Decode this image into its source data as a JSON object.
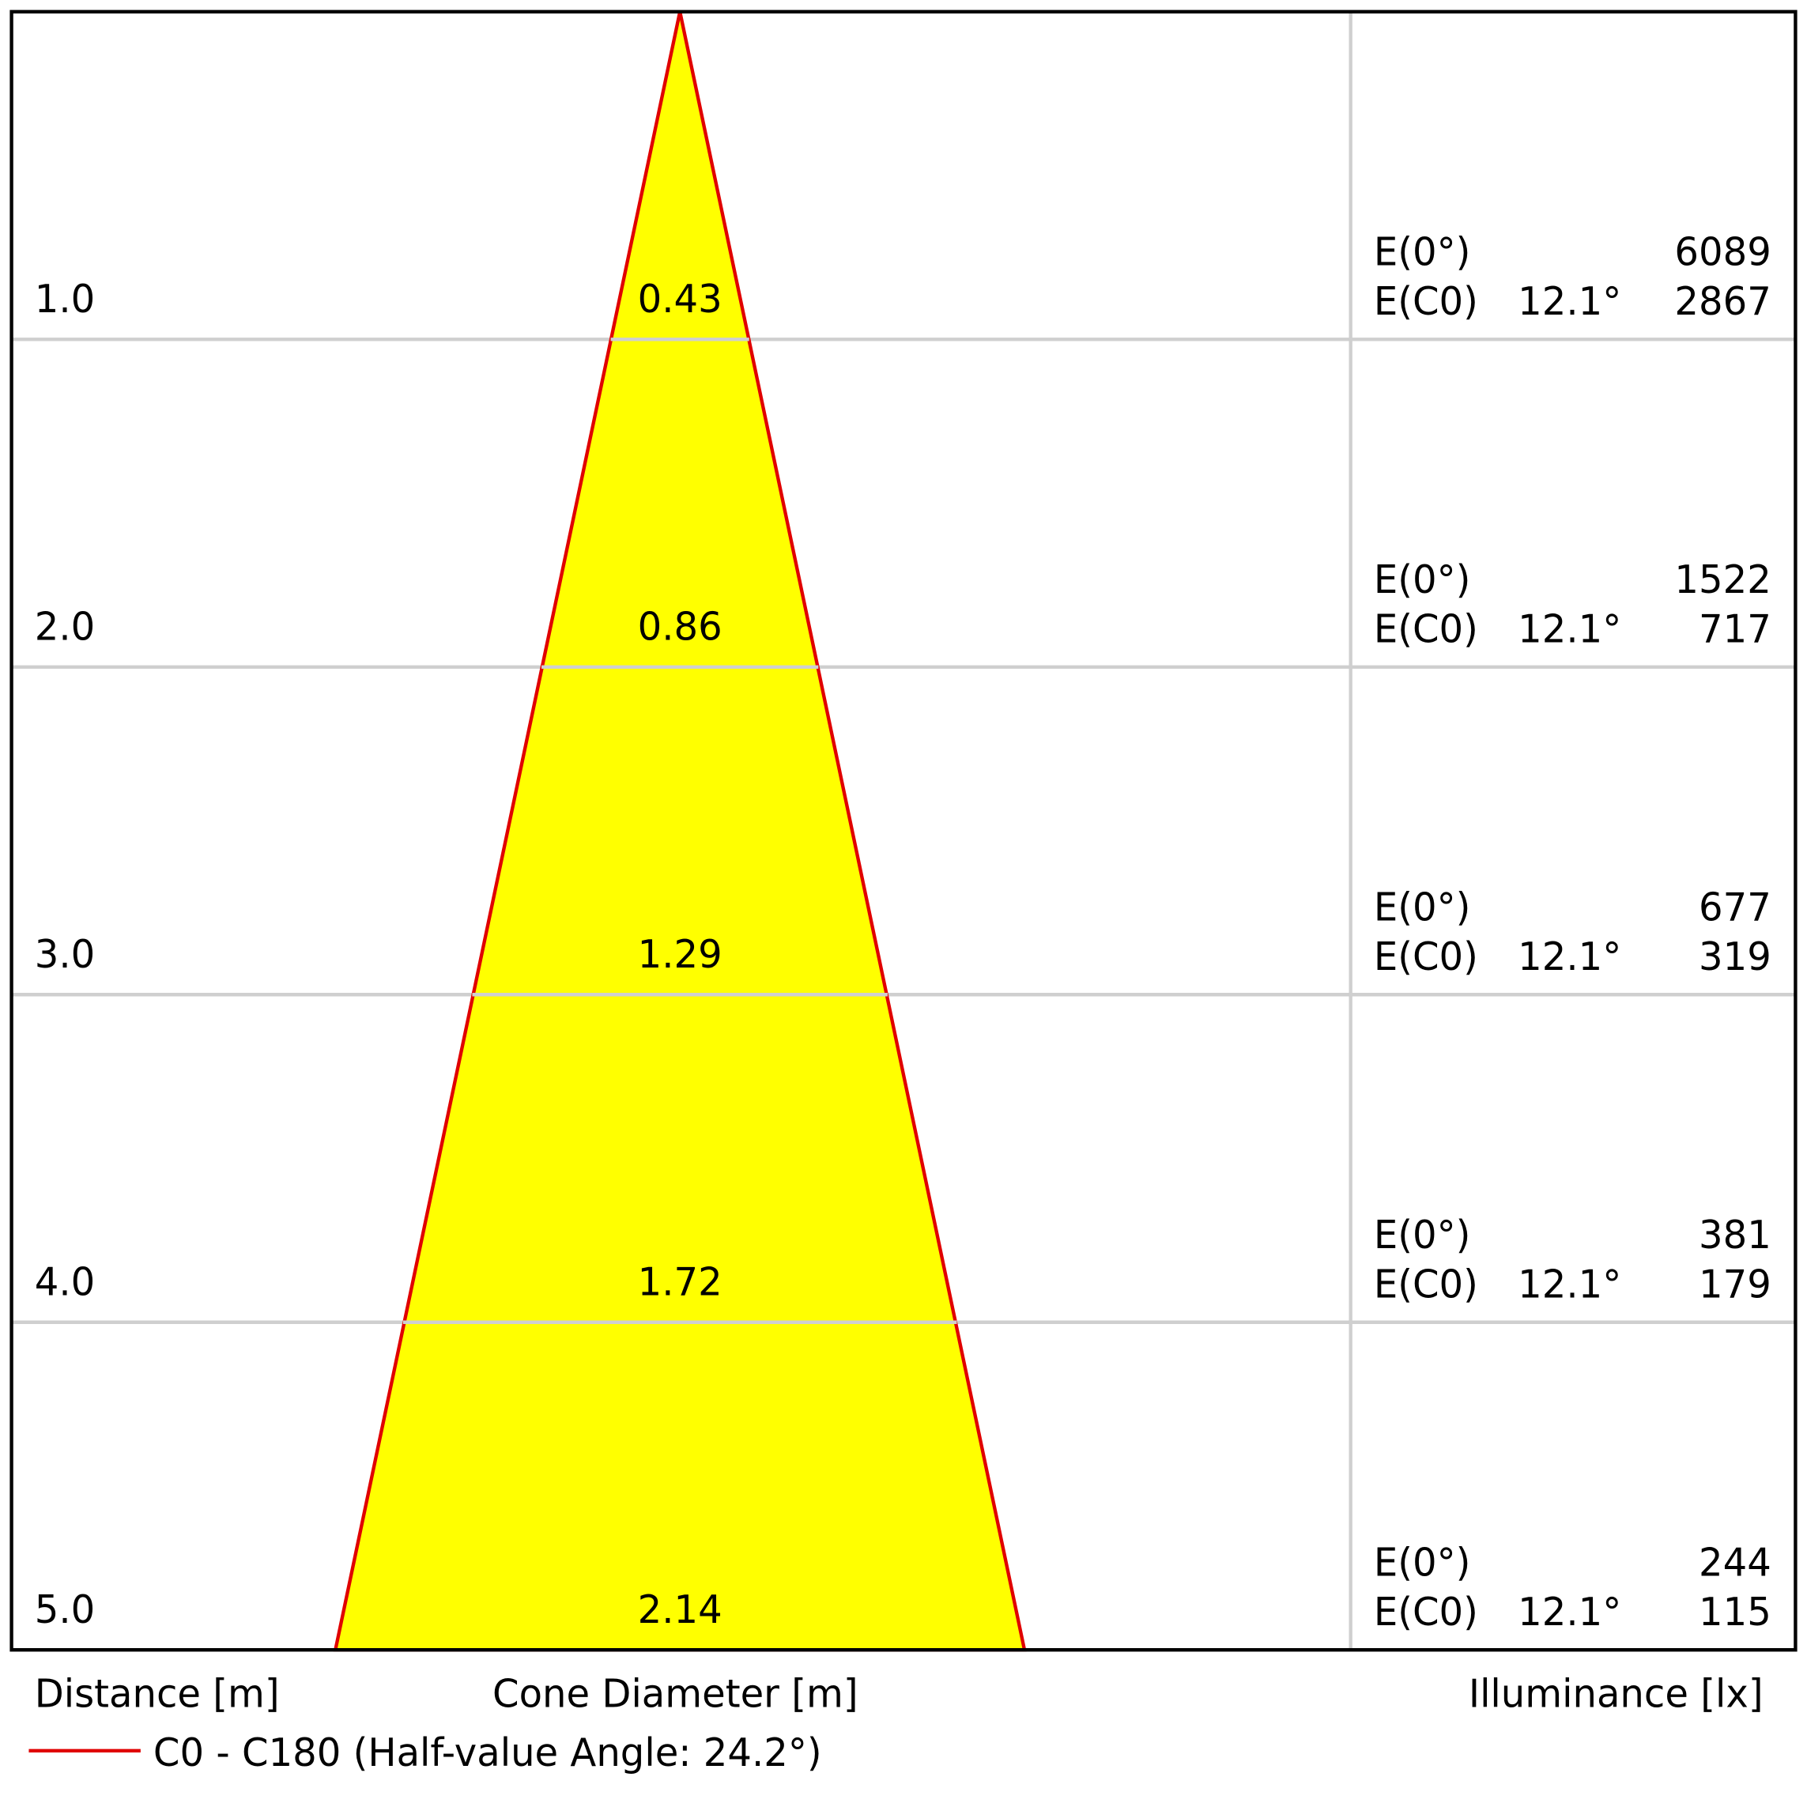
{
  "chart_data": {
    "type": "cone",
    "fill_color": "#ffff00",
    "line_color": "#e00000",
    "distances": [
      {
        "value": 1,
        "label": "1.0"
      },
      {
        "value": 2,
        "label": "2.0"
      },
      {
        "value": 3,
        "label": "3.0"
      },
      {
        "value": 4,
        "label": "4.0"
      },
      {
        "value": 5,
        "label": "5.0"
      }
    ],
    "diameters": [
      0.43,
      0.86,
      1.29,
      1.72,
      2.14
    ],
    "e0_label": "E(0°)",
    "ec0_label": "E(C0)",
    "e0": [
      6089,
      1522,
      677,
      381,
      244
    ],
    "ec0": [
      2867,
      717,
      319,
      179,
      115
    ],
    "angles": [
      12.1,
      12.1,
      12.1,
      12.1,
      12.1
    ],
    "angle_labels": [
      "12.1°",
      "12.1°",
      "12.1°",
      "12.1°",
      "12.1°"
    ],
    "distance_label": "Distance [m]",
    "diameter_label": "Cone Diameter [m]",
    "illuminance_label": "Illuminance [lx]",
    "legend": "C0 - C180 (Half-value Angle: 24.2°)"
  }
}
